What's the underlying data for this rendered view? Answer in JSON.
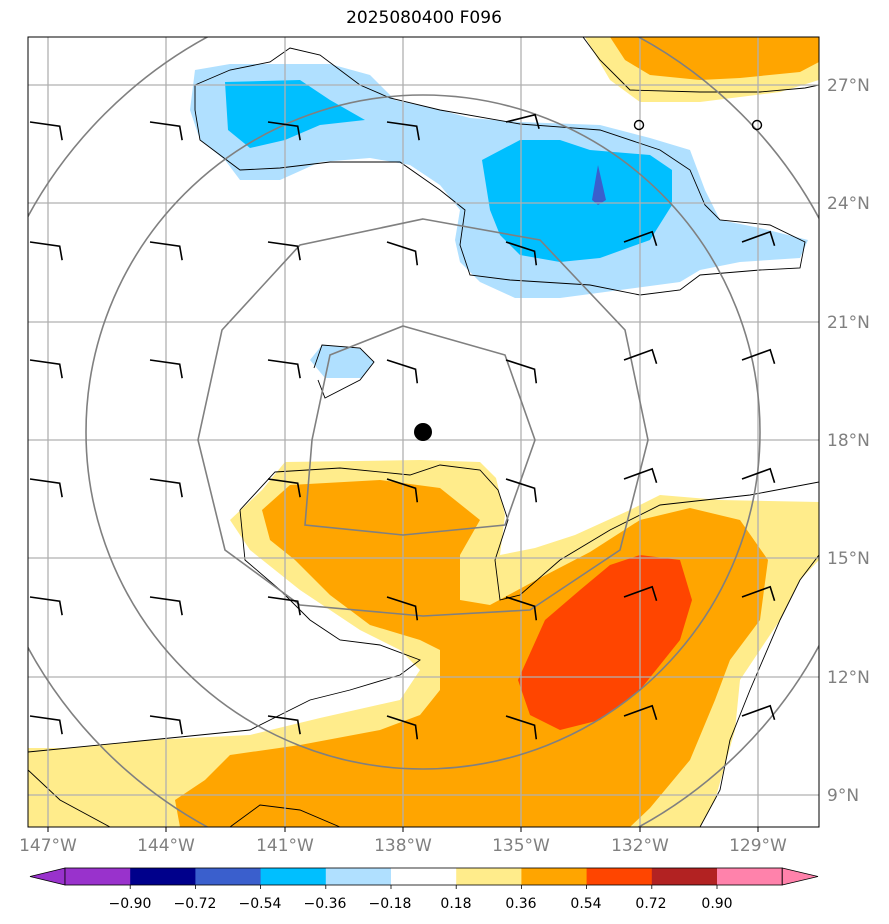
{
  "title": "2025080400 F096",
  "lon_labels": [
    "147°W",
    "144°W",
    "141°W",
    "138°W",
    "135°W",
    "132°W",
    "129°W"
  ],
  "lat_labels": [
    "27°N",
    "24°N",
    "21°N",
    "18°N",
    "15°N",
    "12°N",
    "9°N"
  ],
  "colorbar": {
    "ticks": [
      "−0.90",
      "−0.72",
      "−0.54",
      "−0.36",
      "−0.18",
      "0.18",
      "0.36",
      "0.54",
      "0.72",
      "0.90"
    ],
    "colors": [
      "#9932cc",
      "#00008b",
      "#3a5fcd",
      "#00bfff",
      "#b0e0ff",
      "#ffffff",
      "#ffec8b",
      "#ffa500",
      "#ff4500",
      "#b22222",
      "#ff82ab"
    ]
  },
  "map": {
    "storm_center": {
      "lon": -137.5,
      "lat": 18.2
    },
    "range_rings": 4,
    "barb_rows": 6,
    "barb_cols": 7
  }
}
